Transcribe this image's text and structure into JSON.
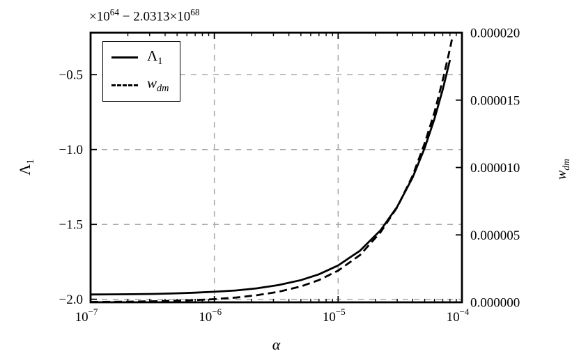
{
  "axes": {
    "offset": {
      "p1": "×10",
      "e1": "64",
      "p2": " − 2.0313×10",
      "e2": "68"
    },
    "left_label": {
      "main": "Λ",
      "sub": "1"
    },
    "right_label": {
      "main": "w",
      "sub": "dm"
    },
    "x_label": "α",
    "x_tick_labels": [
      {
        "base": "10",
        "exp": "−7"
      },
      {
        "base": "10",
        "exp": "−6"
      },
      {
        "base": "10",
        "exp": "−5"
      },
      {
        "base": "10",
        "exp": "−4"
      }
    ],
    "y_tick_labels_left": [
      "−2.0",
      "−1.5",
      "−1.0",
      "−0.5"
    ],
    "y_tick_labels_right": [
      "0.000000",
      "0.000005",
      "0.000010",
      "0.000015",
      "0.000020"
    ]
  },
  "legend": {
    "items": [
      {
        "main": "Λ",
        "sub": "1",
        "style": "solid"
      },
      {
        "main": "w",
        "sub": "dm",
        "style": "dashed"
      }
    ]
  },
  "colors": {
    "line": "#000000",
    "grid": "#a8a8a8",
    "background": "#ffffff"
  },
  "chart_data": {
    "type": "line",
    "title": "",
    "xlabel": "α",
    "ylabel_left": "Λ_1 (×10^64, offset −2.0313×10^68)",
    "ylabel_right": "w_dm",
    "x_scale": "log",
    "xlim": [
      1e-07,
      0.0001
    ],
    "ylim_left": [
      -2.02,
      -0.22
    ],
    "ylim_right": [
      0,
      2e-05
    ],
    "x_ticks": [
      1e-07,
      1e-06,
      1e-05,
      0.0001
    ],
    "y_ticks_left": [
      -2.0,
      -1.5,
      -1.0,
      -0.5
    ],
    "y_ticks_right": [
      0,
      5e-06,
      1e-05,
      1.5e-05,
      2e-05
    ],
    "grid": true,
    "legend_position": "upper-left",
    "series": [
      {
        "name": "Lambda_1",
        "axis": "left",
        "style": "solid",
        "x": [
          1e-07,
          1.5e-07,
          2.2e-07,
          3.3e-07,
          5e-07,
          7e-07,
          1e-06,
          1.5e-06,
          2.2e-06,
          3.3e-06,
          5e-06,
          7e-06,
          1e-05,
          1.5e-05,
          2.2e-05,
          3e-05,
          4e-05,
          5e-05,
          6e-05,
          7e-05,
          8e-05
        ],
        "y": [
          -1.968,
          -1.967,
          -1.966,
          -1.964,
          -1.96,
          -1.956,
          -1.95,
          -1.941,
          -1.927,
          -1.905,
          -1.872,
          -1.833,
          -1.774,
          -1.676,
          -1.539,
          -1.382,
          -1.186,
          -0.99,
          -0.794,
          -0.598,
          -0.402
        ]
      },
      {
        "name": "w_dm",
        "axis": "right",
        "style": "dashed",
        "x": [
          1e-07,
          1.5e-07,
          2.2e-07,
          3.3e-07,
          5e-07,
          7e-07,
          1e-06,
          1.5e-06,
          2.2e-06,
          3.3e-06,
          5e-06,
          7e-06,
          1e-05,
          1.5e-05,
          2.2e-05,
          3e-05,
          4e-05,
          5e-05,
          6e-05,
          7e-05,
          8e-05,
          8.3e-05
        ],
        "y": [
          2.4e-08,
          3.5e-08,
          5.2e-08,
          7.8e-08,
          1.18e-07,
          1.65e-07,
          2.35e-07,
          3.5e-07,
          5.2e-07,
          7.8e-07,
          1.18e-06,
          1.65e-06,
          2.35e-06,
          3.5e-06,
          5.2e-06,
          7.05e-06,
          9.4e-06,
          1.18e-05,
          1.41e-05,
          1.65e-05,
          1.88e-05,
          1.95e-05
        ]
      }
    ]
  }
}
